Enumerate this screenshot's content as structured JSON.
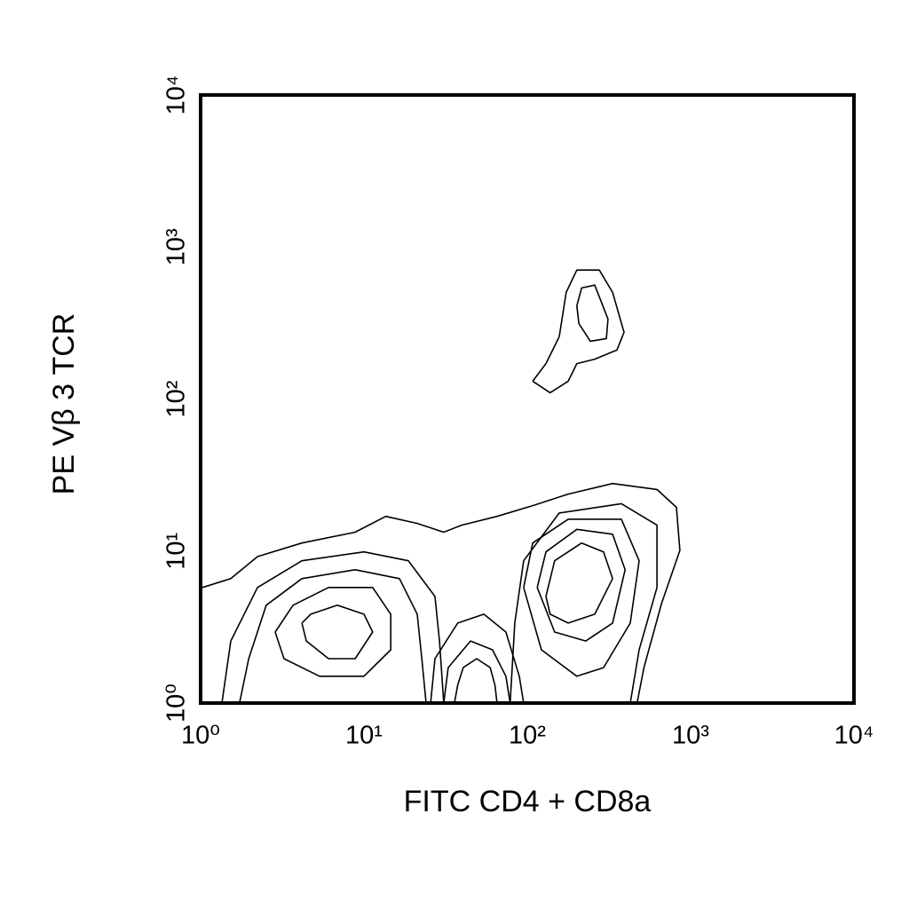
{
  "chart_data": {
    "type": "contour",
    "xlabel": "FITC CD4 + CD8a",
    "ylabel": "PE Vβ 3 TCR",
    "log_x": true,
    "log_y": true,
    "color": "#000000",
    "xlim": [
      1,
      10000
    ],
    "ylim": [
      1,
      10000
    ],
    "xticks": [
      {
        "value": 1,
        "label": "10⁰"
      },
      {
        "value": 10,
        "label": "10¹"
      },
      {
        "value": 100,
        "label": "10²"
      },
      {
        "value": 1000,
        "label": "10³"
      },
      {
        "value": 10000,
        "label": "10⁴"
      }
    ],
    "yticks": [
      {
        "value": 1,
        "label": "10⁰"
      },
      {
        "value": 10,
        "label": "10¹"
      },
      {
        "value": 100,
        "label": "10²"
      },
      {
        "value": 1000,
        "label": "10³"
      },
      {
        "value": 10000,
        "label": "10⁴"
      }
    ],
    "contours": [
      {
        "x": [
          108,
          130,
          157,
          173,
          201,
          276,
          333,
          391,
          354,
          259,
          201,
          178,
          138,
          108
        ],
        "y": [
          131,
          171,
          257,
          503,
          705,
          705,
          503,
          275,
          210,
          183,
          171,
          131,
          110,
          131
        ]
      },
      {
        "x": [
          201,
          215,
          259,
          312,
          305,
          243,
          207,
          201
        ],
        "y": [
          411,
          538,
          561,
          336,
          250,
          240,
          314,
          411
        ]
      },
      {
        "x": [
          4.17,
          4.72,
          6.87,
          10,
          11.3,
          8.83,
          6.07,
          4.44,
          4.17
        ],
        "y": [
          3.36,
          3.84,
          4.4,
          3.84,
          2.93,
          1.96,
          1.96,
          2.56,
          3.36
        ]
      },
      {
        "x": [
          2.86,
          3.68,
          6.07,
          11.3,
          14.6,
          14.6,
          10,
          5.35,
          3.24,
          2.86
        ],
        "y": [
          2.93,
          4.4,
          5.76,
          5.76,
          3.84,
          2.24,
          1.5,
          1.5,
          1.96,
          2.93
        ]
      },
      {
        "x": [
          1.73,
          1.97,
          2.52,
          4.17,
          8.83,
          16.5,
          21.2,
          22.6,
          24
        ],
        "y": [
          1,
          1.96,
          4.4,
          6.59,
          7.54,
          6.59,
          3.84,
          1.96,
          1
        ]
      },
      {
        "x": [
          1.35,
          1.53,
          2.23,
          4.17,
          10,
          18.7,
          27.2,
          29,
          30.8
        ],
        "y": [
          1,
          2.56,
          5.76,
          8.63,
          9.87,
          8.63,
          5.03,
          2.56,
          1
        ]
      },
      {
        "x": [
          35.8,
          37.5,
          40.5,
          49,
          59.3,
          63.4,
          65.3
        ],
        "y": [
          1,
          1.31,
          1.71,
          1.96,
          1.71,
          1.31,
          1
        ]
      },
      {
        "x": [
          30.8,
          32.8,
          44.9,
          61.2,
          74,
          78.5
        ],
        "y": [
          1,
          1.71,
          2.56,
          2.24,
          1.5,
          1
        ]
      },
      {
        "x": [
          25.6,
          27.2,
          37.5,
          54.2,
          74,
          89.4,
          95
        ],
        "y": [
          1,
          1.96,
          3.36,
          3.84,
          2.93,
          1.5,
          1
        ]
      },
      {
        "x": [
          130,
          147,
          215,
          293,
          333,
          259,
          178,
          138,
          130
        ],
        "y": [
          5.03,
          8.63,
          11.3,
          9.87,
          6.59,
          3.84,
          3.36,
          3.84,
          5.03
        ]
      },
      {
        "x": [
          115,
          130,
          201,
          333,
          397,
          333,
          228,
          147,
          115
        ],
        "y": [
          5.76,
          9.87,
          13.9,
          12.9,
          7.54,
          3.36,
          2.56,
          2.93,
          5.76
        ]
      },
      {
        "x": [
          95,
          108,
          178,
          377,
          484,
          427,
          293,
          201,
          122,
          95
        ],
        "y": [
          5.76,
          11.3,
          16.2,
          16.2,
          8.63,
          3.36,
          1.71,
          1.5,
          2.24,
          5.76
        ]
      },
      {
        "x": [
          78.5,
          83.8,
          95,
          157,
          377,
          622,
          622,
          484,
          427
        ],
        "y": [
          1,
          3.36,
          8.63,
          17.8,
          20.5,
          14.8,
          5.76,
          2.24,
          1
        ]
      },
      {
        "x": [
          1.025,
          1.53,
          2.23,
          4.17,
          8.83,
          13.6,
          21.2,
          30.8,
          39.6,
          65.3,
          108,
          178,
          333,
          622,
          819,
          860,
          663,
          518,
          470
        ],
        "y": [
          5.76,
          6.59,
          9.2,
          11.3,
          13.3,
          16.9,
          15.2,
          13.3,
          14.8,
          16.9,
          19.9,
          23.7,
          27.8,
          25.4,
          19.4,
          10.1,
          4.51,
          1.71,
          1
        ]
      }
    ]
  }
}
